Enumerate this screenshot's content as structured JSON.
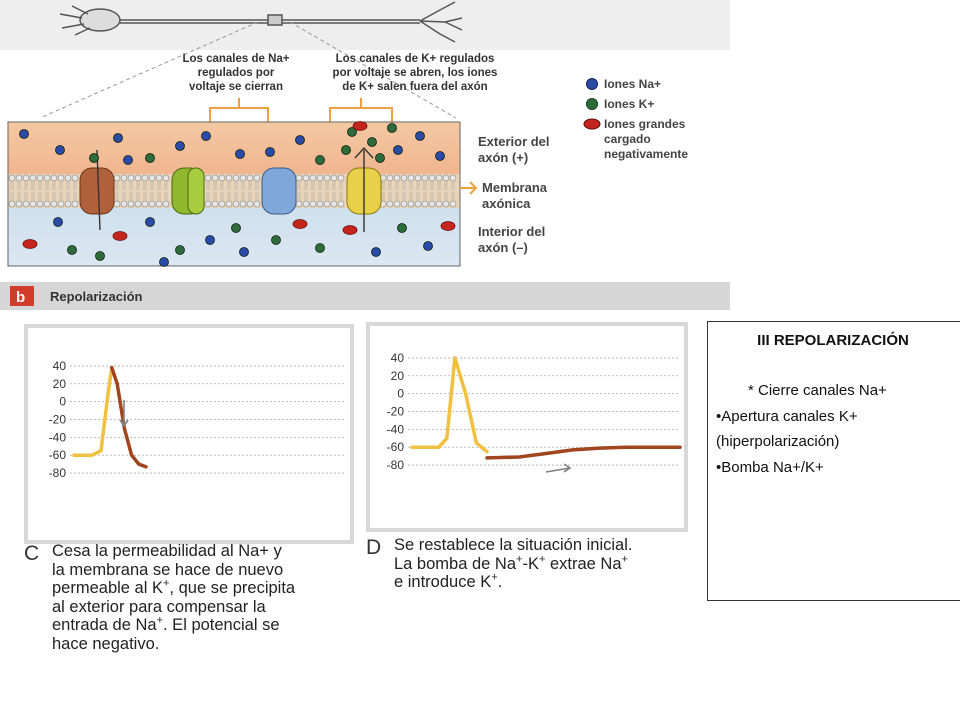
{
  "top_figure": {
    "label_na_channels": [
      "Los canales de Na+",
      "regulados por",
      "voltaje se cierran"
    ],
    "label_k_channels": [
      "Los canales de K+ regulados",
      "por voltaje se abren, los iones",
      "de K+ salen fuera del axón"
    ],
    "legend": [
      {
        "label": "Iones Na+",
        "color": "#2a4aa8"
      },
      {
        "label": "Iones K+",
        "color": "#2d6b3a"
      },
      {
        "label": "Iones grandes cargado negativamente",
        "lines": [
          "Iones grandes",
          "cargado",
          "negativamente"
        ],
        "color": "#c4261e"
      }
    ],
    "region_labels": {
      "exterior": [
        "Exterior del",
        "axón (+)"
      ],
      "membrane": [
        "Membrana",
        "axónica"
      ],
      "interior": [
        "Interior del",
        "axón (–)"
      ]
    },
    "panel_letter": "b",
    "panel_title": "Repolarización"
  },
  "chart_data": [
    {
      "type": "line",
      "panel": "C",
      "yticks": [
        40,
        20,
        0,
        -20,
        -40,
        -60,
        -80
      ],
      "ylim": [
        -90,
        50
      ],
      "series": [
        {
          "color": "#f0c040",
          "x": [
            0,
            1,
            1.5,
            1.9,
            2.1
          ],
          "y": [
            -60,
            -60,
            -55,
            10,
            38
          ]
        },
        {
          "color": "#a0451e",
          "x": [
            2.1,
            2.4,
            2.8,
            3.2,
            3.6,
            4.0
          ],
          "y": [
            38,
            20,
            -30,
            -60,
            -70,
            -73
          ]
        }
      ],
      "annotations": [
        {
          "type": "arrow",
          "direction": "down",
          "color": "#808080"
        }
      ]
    },
    {
      "type": "line",
      "panel": "D",
      "yticks": [
        40,
        20,
        0,
        -20,
        -40,
        -60,
        -80
      ],
      "ylim": [
        -90,
        50
      ],
      "series": [
        {
          "color": "#f0c040",
          "x": [
            0,
            1,
            1.3,
            1.6,
            2.0,
            2.4,
            2.8
          ],
          "y": [
            -60,
            -60,
            -50,
            40,
            0,
            -55,
            -65
          ]
        },
        {
          "color": "#a0451e",
          "x": [
            2.8,
            4,
            5,
            6,
            7,
            8,
            10
          ],
          "y": [
            -72,
            -71,
            -67,
            -63,
            -61,
            -60,
            -60
          ]
        }
      ],
      "annotations": [
        {
          "type": "arrow",
          "direction": "right",
          "color": "#808080"
        }
      ]
    }
  ],
  "caption_c": {
    "letter": "C",
    "lines": [
      {
        "text": "Cesa la permeabilidad al Na+ y"
      },
      {
        "text": "la membrana se hace de nuevo"
      },
      {
        "text": "permeable al K",
        "sup": "+",
        "tail": ", que se precipita"
      },
      {
        "text": "al exterior para compensar la"
      },
      {
        "text": "entrada de Na",
        "sup": "+",
        "tail": ". El potencial se"
      },
      {
        "text": "hace negativo."
      }
    ]
  },
  "caption_d": {
    "letter": "D",
    "lines": [
      {
        "text": "Se restablece la situación inicial."
      },
      {
        "text": "La bomba de Na",
        "sup": "+",
        "tail": "-K",
        "sup2": "+",
        "tail2": " extrae Na",
        "sup3": "+"
      },
      {
        "text": "e introduce K",
        "sup": "+",
        "tail": "."
      }
    ]
  },
  "notes": {
    "title": "III REPOLARIZACIÓN",
    "items": [
      "* Cierre  canales Na+",
      "•Apertura canales K+",
      "(hiperpolarización)",
      "•Bomba Na+/K+"
    ]
  }
}
